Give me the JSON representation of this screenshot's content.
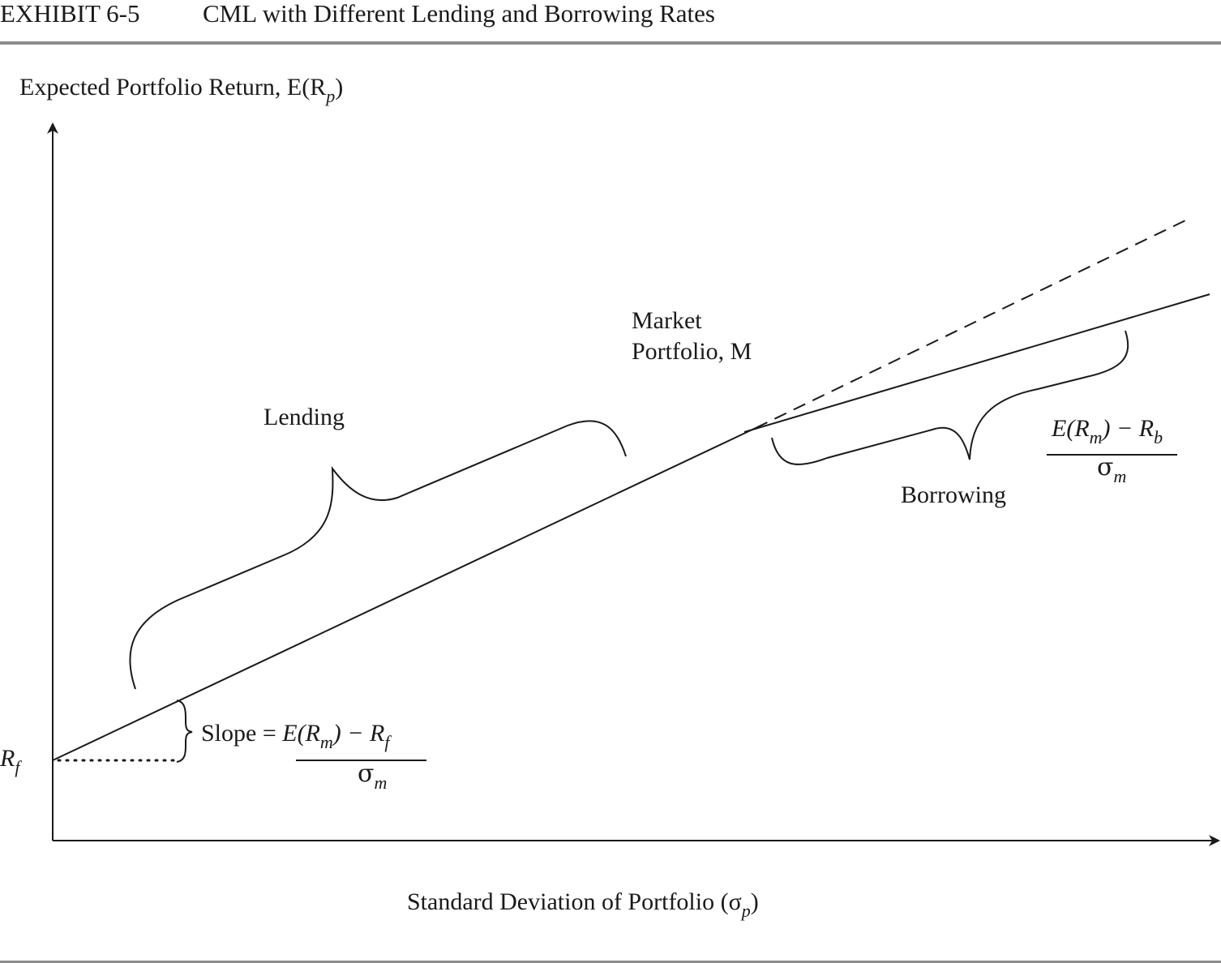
{
  "exhibit": {
    "number": "EXHIBIT 6-5",
    "title": "CML with Different Lending and Borrowing Rates"
  },
  "axes": {
    "y_label": "Expected Portfolio Return, E(R",
    "y_label_sub": "p",
    "y_label_close": ")",
    "x_label": "Standard Deviation of Portfolio (σ",
    "x_label_sub": "p",
    "x_label_close": ")"
  },
  "rf_label": {
    "main": "R",
    "sub": "f"
  },
  "labels": {
    "lending": "Lending",
    "borrowing": "Borrowing",
    "market_line1": "Market",
    "market_line2": "Portfolio, M"
  },
  "slope_formula": {
    "prefix": "Slope = ",
    "num_e": "E(R",
    "num_m": "m",
    "num_mid": ") − R",
    "num_f": "f",
    "den": "σ",
    "den_sub": "m"
  },
  "borrow_formula": {
    "num_e": "E(R",
    "num_m": "m",
    "num_mid": ") − R",
    "num_b": "b",
    "den": "σ",
    "den_sub": "m"
  },
  "colors": {
    "ink": "#1a1a1a",
    "rule": "#8c8c8c"
  }
}
